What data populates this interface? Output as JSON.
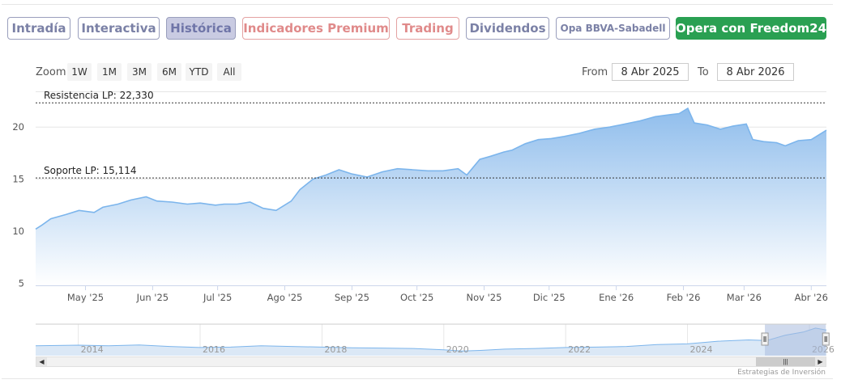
{
  "tabs": [
    {
      "label": "Intradía",
      "style": "normal",
      "active": false
    },
    {
      "label": "Interactiva",
      "style": "normal",
      "active": false
    },
    {
      "label": "Histórica",
      "style": "normal",
      "active": true
    },
    {
      "label": "Indicadores Premium",
      "style": "premium",
      "active": false
    },
    {
      "label": "Trading",
      "style": "premium",
      "active": false
    },
    {
      "label": "Dividendos",
      "style": "normal",
      "active": false
    },
    {
      "label": "Opa BBVA-Sabadell",
      "style": "small",
      "active": false
    },
    {
      "label": "Opera con Freedom24",
      "style": "cta",
      "active": false
    }
  ],
  "range_selector": {
    "zoom_label": "Zoom",
    "buttons": [
      "1W",
      "1M",
      "3M",
      "6M",
      "YTD",
      "All"
    ],
    "from_label": "From",
    "from_value": "8 Abr 2025",
    "to_label": "To",
    "to_value": "8 Abr 2026"
  },
  "colors": {
    "line": "#7cb5ec",
    "fill_top": "#8fbdec",
    "fill_bottom": "#ffffff",
    "level_line": "#333333",
    "navigator_mask": "#a9bbdf",
    "cta": "#2aa052"
  },
  "chart_data": {
    "type": "area",
    "ylim": [
      4.8,
      23.2
    ],
    "yticks": [
      5,
      10,
      15,
      20
    ],
    "xlim": [
      "2025-04-08",
      "2026-04-08"
    ],
    "xticks": [
      {
        "date": "2025-05-01",
        "label": "May '25"
      },
      {
        "date": "2025-06-01",
        "label": "Jun '25"
      },
      {
        "date": "2025-07-01",
        "label": "Jul '25"
      },
      {
        "date": "2025-08-01",
        "label": "Ago '25"
      },
      {
        "date": "2025-09-01",
        "label": "Sep '25"
      },
      {
        "date": "2025-10-01",
        "label": "Oct '25"
      },
      {
        "date": "2025-11-01",
        "label": "Nov '25"
      },
      {
        "date": "2025-12-01",
        "label": "Dic '25"
      },
      {
        "date": "2026-01-01",
        "label": "Ene '26"
      },
      {
        "date": "2026-02-01",
        "label": "Feb '26"
      },
      {
        "date": "2026-03-01",
        "label": "Mar '26"
      },
      {
        "date": "2026-04-01",
        "label": "Abr '26"
      }
    ],
    "levels": [
      {
        "label": "Resistencia LP: 22,330",
        "value": 22.33
      },
      {
        "label": "Soporte LP: 15,114",
        "value": 15.114
      }
    ],
    "series": [
      {
        "x": [
          "2025-04-08",
          "2025-04-11",
          "2025-04-15",
          "2025-04-22",
          "2025-04-28",
          "2025-05-05",
          "2025-05-09",
          "2025-05-16",
          "2025-05-22",
          "2025-05-29",
          "2025-06-03",
          "2025-06-10",
          "2025-06-17",
          "2025-06-23",
          "2025-06-30",
          "2025-07-04",
          "2025-07-10",
          "2025-07-16",
          "2025-07-22",
          "2025-07-28",
          "2025-08-04",
          "2025-08-08",
          "2025-08-14",
          "2025-08-20",
          "2025-08-26",
          "2025-09-01",
          "2025-09-08",
          "2025-09-15",
          "2025-09-22",
          "2025-09-29",
          "2025-10-06",
          "2025-10-13",
          "2025-10-20",
          "2025-10-24",
          "2025-10-30",
          "2025-11-04",
          "2025-11-10",
          "2025-11-14",
          "2025-11-20",
          "2025-11-26",
          "2025-12-02",
          "2025-12-08",
          "2025-12-15",
          "2025-12-22",
          "2025-12-29",
          "2026-01-05",
          "2026-01-12",
          "2026-01-19",
          "2026-01-26",
          "2026-01-30",
          "2026-02-03",
          "2026-02-06",
          "2026-02-12",
          "2026-02-18",
          "2026-02-24",
          "2026-03-02",
          "2026-03-05",
          "2026-03-10",
          "2026-03-16",
          "2026-03-20",
          "2026-03-26",
          "2026-04-01",
          "2026-04-08"
        ],
        "y": [
          10.2,
          10.6,
          11.2,
          11.6,
          12.0,
          11.8,
          12.3,
          12.6,
          13.0,
          13.3,
          12.9,
          12.8,
          12.6,
          12.7,
          12.5,
          12.6,
          12.6,
          12.8,
          12.2,
          12.0,
          12.9,
          14.0,
          15.0,
          15.4,
          15.9,
          15.5,
          15.2,
          15.7,
          16.0,
          15.9,
          15.8,
          15.8,
          16.0,
          15.4,
          16.9,
          17.2,
          17.6,
          17.8,
          18.4,
          18.8,
          18.9,
          19.1,
          19.4,
          19.8,
          20.0,
          20.3,
          20.6,
          21.0,
          21.2,
          21.3,
          21.8,
          20.4,
          20.2,
          19.8,
          20.1,
          20.3,
          18.8,
          18.6,
          18.5,
          18.2,
          18.7,
          18.8,
          19.7
        ]
      }
    ],
    "navigator": {
      "xlim": [
        2013.3,
        2026.28
      ],
      "labels": [
        {
          "year": 2014,
          "label": "2014"
        },
        {
          "year": 2016,
          "label": "2016"
        },
        {
          "year": 2018,
          "label": "2018"
        },
        {
          "year": 2020,
          "label": "2020"
        },
        {
          "year": 2022,
          "label": "2022"
        },
        {
          "year": 2024,
          "label": "2024"
        },
        {
          "year": 2026,
          "label": "2026"
        }
      ],
      "selected": [
        2025.27,
        2026.27
      ],
      "ylim": [
        0,
        24
      ],
      "series": {
        "x": [
          2013.3,
          2014.0,
          2014.5,
          2015.0,
          2015.5,
          2016.0,
          2016.5,
          2017.0,
          2017.5,
          2018.0,
          2018.5,
          2019.0,
          2019.5,
          2020.0,
          2020.3,
          2020.6,
          2021.0,
          2021.5,
          2022.0,
          2022.5,
          2023.0,
          2023.5,
          2024.0,
          2024.5,
          2025.0,
          2025.3,
          2025.6,
          2025.9,
          2026.1,
          2026.28
        ],
        "y": [
          7.5,
          8.0,
          7.5,
          8.2,
          7.0,
          6.2,
          6.5,
          7.5,
          7.0,
          6.5,
          6.0,
          5.8,
          5.5,
          4.5,
          3.5,
          4.0,
          5.0,
          5.5,
          6.2,
          6.5,
          7.0,
          8.5,
          9.0,
          11.0,
          12.0,
          11.5,
          15.5,
          18.0,
          21.0,
          19.5
        ]
      }
    }
  },
  "credit": "Estrategias de Inversión"
}
